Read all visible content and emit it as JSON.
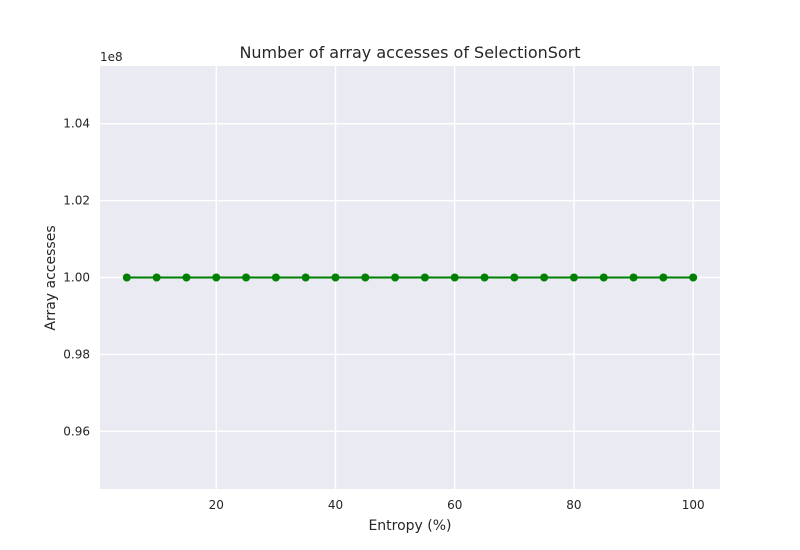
{
  "chart_data": {
    "type": "line",
    "title": "Number of array accesses of SelectionSort",
    "xlabel": "Entropy (%)",
    "ylabel": "Array accesses",
    "y_offset_label": "1e8",
    "xlim": [
      0.5,
      104.5
    ],
    "ylim": [
      0.945,
      1.055
    ],
    "x_ticks": [
      20,
      40,
      60,
      80,
      100
    ],
    "x_tick_labels": [
      "20",
      "40",
      "60",
      "80",
      "100"
    ],
    "y_ticks": [
      0.96,
      0.98,
      1.0,
      1.02,
      1.04
    ],
    "y_tick_labels": [
      "0.96",
      "0.98",
      "1.00",
      "1.02",
      "1.04"
    ],
    "grid": true,
    "series": [
      {
        "color": "#008000",
        "x": [
          5,
          10,
          15,
          20,
          25,
          30,
          35,
          40,
          45,
          50,
          55,
          60,
          65,
          70,
          75,
          80,
          85,
          90,
          95,
          100
        ],
        "values": [
          1.0,
          1.0,
          1.0,
          1.0,
          1.0,
          1.0,
          1.0,
          1.0,
          1.0,
          1.0,
          1.0,
          1.0,
          1.0,
          1.0,
          1.0,
          1.0,
          1.0,
          1.0,
          1.0,
          1.0
        ]
      }
    ],
    "colors": {
      "plot_background": "#eaeaf2",
      "grid": "#ffffff",
      "text": "#262626"
    }
  }
}
